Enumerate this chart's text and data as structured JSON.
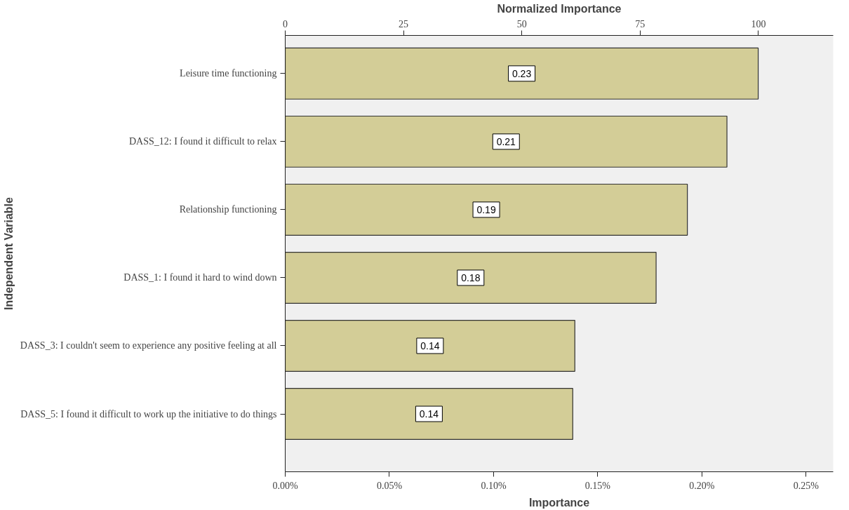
{
  "chart_data": {
    "type": "bar",
    "orientation": "horizontal",
    "xlabel": "Importance",
    "x2label": "Normalized Importance",
    "ylabel": "Independent Variable",
    "categories": [
      "Leisure time functioning",
      "DASS_12: I found it difficult to relax",
      "Relationship functioning",
      "DASS_1: I found it hard to wind down",
      "DASS_3: I couldn't seem to experience any positive feeling at all",
      "DASS_5: I found it difficult to work up the initiative to do things"
    ],
    "values": [
      0.227,
      0.212,
      0.193,
      0.178,
      0.139,
      0.138
    ],
    "value_labels": [
      "0.23",
      "0.21",
      "0.19",
      "0.18",
      "0.14",
      "0.14"
    ],
    "color": "#d3cd97",
    "xlim": [
      0,
      0.263
    ],
    "xticks": [
      {
        "value": 0,
        "label": "0.00%"
      },
      {
        "value": 0.05,
        "label": "0.05%"
      },
      {
        "value": 0.1,
        "label": "0.10%"
      },
      {
        "value": 0.15,
        "label": "0.15%"
      },
      {
        "value": 0.2,
        "label": "0.20%"
      },
      {
        "value": 0.25,
        "label": "0.25%"
      }
    ],
    "x2lim": [
      0,
      115.8
    ],
    "x2ticks": [
      0,
      25,
      50,
      75,
      100
    ]
  }
}
